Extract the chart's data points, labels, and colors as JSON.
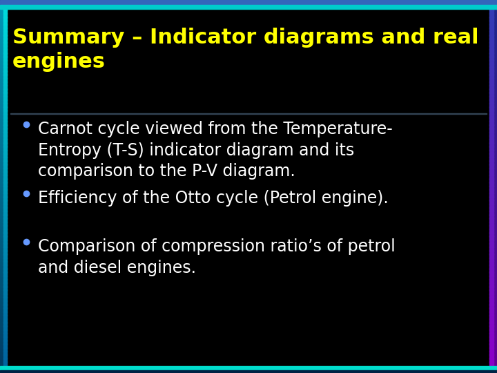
{
  "title": "Summary – Indicator diagrams and real\nengines",
  "title_color": "#ffff00",
  "background_color": "#000000",
  "bullet_color": "#6699ff",
  "bullet_text_color": "#ffffff",
  "bullets": [
    "Carnot cycle viewed from the Temperature-\nEntropy (T-S) indicator diagram and its\ncomparison to the P-V diagram.",
    "Efficiency of the Otto cycle (Petrol engine).",
    "Comparison of compression ratio’s of petrol\nand diesel engines."
  ],
  "title_fontsize": 22,
  "bullet_fontsize": 17,
  "left_border_top_color": "#0080ff",
  "left_border_bottom_color": "#00ffee",
  "right_border_top_color": "#8800cc",
  "right_border_bottom_color": "#4488ff",
  "top_bar_color": "#4488cc",
  "bottom_bar_color": "#00eedd"
}
